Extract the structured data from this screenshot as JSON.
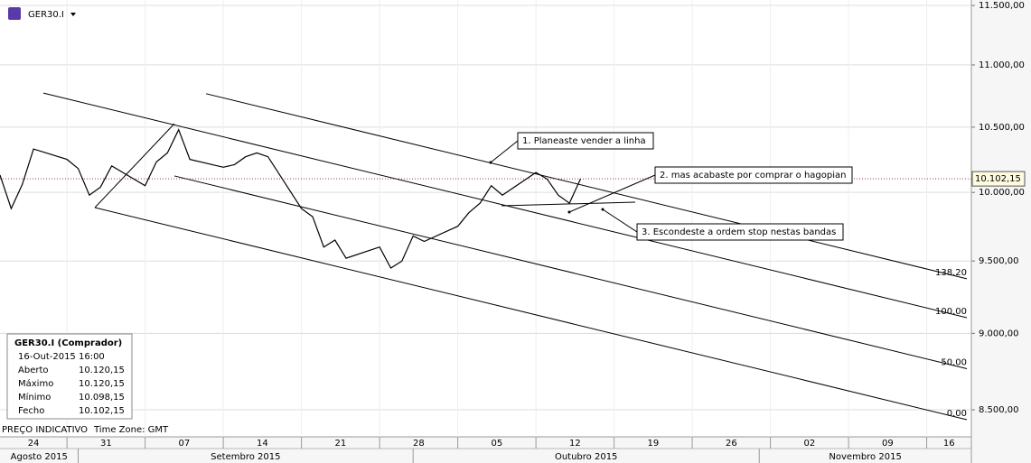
{
  "chart_data": {
    "type": "line",
    "symbol": "GER30.I",
    "log_scale": true,
    "x": [
      "2015-08-25",
      "2015-08-26",
      "2015-08-27",
      "2015-08-28",
      "2015-08-31",
      "2015-09-01",
      "2015-09-02",
      "2015-09-03",
      "2015-09-04",
      "2015-09-07",
      "2015-09-08",
      "2015-09-09",
      "2015-09-10",
      "2015-09-11",
      "2015-09-14",
      "2015-09-15",
      "2015-09-16",
      "2015-09-17",
      "2015-09-18",
      "2015-09-21",
      "2015-09-22",
      "2015-09-23",
      "2015-09-24",
      "2015-09-25",
      "2015-09-28",
      "2015-09-29",
      "2015-09-30",
      "2015-10-01",
      "2015-10-02",
      "2015-10-05",
      "2015-10-06",
      "2015-10-07",
      "2015-10-08",
      "2015-10-09",
      "2015-10-12",
      "2015-10-13",
      "2015-10-14",
      "2015-10-15",
      "2015-10-16"
    ],
    "series": [
      {
        "name": "GER30.I",
        "color": "#000000",
        "values": [
          10130,
          9880,
          10060,
          10330,
          10250,
          10180,
          9980,
          10040,
          10200,
          10050,
          10230,
          10300,
          10480,
          10250,
          10190,
          10210,
          10270,
          10300,
          10270,
          9880,
          9820,
          9600,
          9650,
          9520,
          9600,
          9450,
          9500,
          9680,
          9640,
          9750,
          9850,
          9920,
          10050,
          9980,
          10150,
          10100,
          9980,
          9920,
          10102.15
        ]
      }
    ],
    "xlim": [
      "2015-08-25",
      "2015-11-20"
    ],
    "xticks": [
      {
        "value": "2015-08-24",
        "label": "24"
      },
      {
        "value": "2015-08-31",
        "label": "31"
      },
      {
        "value": "2015-09-07",
        "label": "07"
      },
      {
        "value": "2015-09-14",
        "label": "14"
      },
      {
        "value": "2015-09-21",
        "label": "21"
      },
      {
        "value": "2015-09-28",
        "label": "28"
      },
      {
        "value": "2015-10-05",
        "label": "05"
      },
      {
        "value": "2015-10-12",
        "label": "12"
      },
      {
        "value": "2015-10-19",
        "label": "19"
      },
      {
        "value": "2015-10-26",
        "label": "26"
      },
      {
        "value": "2015-11-02",
        "label": "02"
      },
      {
        "value": "2015-11-09",
        "label": "09"
      },
      {
        "value": "2015-11-16",
        "label": "16"
      }
    ],
    "months": [
      {
        "value": "2015-08-01",
        "label": "Agosto 2015"
      },
      {
        "value": "2015-09-01",
        "label": "Setembro 2015"
      },
      {
        "value": "2015-10-01",
        "label": "Outubro 2015"
      },
      {
        "value": "2015-11-01",
        "label": "Novembro 2015"
      }
    ],
    "ylim": [
      8330,
      11547
    ],
    "yticks": [
      {
        "value": 8500,
        "label": "8.500,00"
      },
      {
        "value": 9000,
        "label": "9.000,00"
      },
      {
        "value": 9500,
        "label": "9.500,00"
      },
      {
        "value": 10000,
        "label": "10.000,00"
      },
      {
        "value": 10500,
        "label": "10.500,00"
      },
      {
        "value": 11000,
        "label": "11.000,00"
      },
      {
        "value": 11500,
        "label": "11.500,00"
      }
    ],
    "last_price": {
      "value": 10102.15,
      "label": "10.102,15"
    },
    "pitchfork_levels": [
      {
        "value": 0,
        "label": "0.00"
      },
      {
        "value": 50,
        "label": "50.00"
      },
      {
        "value": 100,
        "label": "100.00"
      },
      {
        "value": 138.2,
        "label": "138.20"
      }
    ],
    "annotations": [
      "1. Planeaste vender a linha",
      "2. mas acabaste por comprar o hagopian",
      "3. Escondeste a ordem stop nestas bandas"
    ],
    "info_box": {
      "title": "GER30.I (Comprador)",
      "datetime": "16-Out-2015 16:00",
      "rows": [
        [
          "Aberto",
          "10.120,15"
        ],
        [
          "Máximo",
          "10.120,15"
        ],
        [
          "Mínimo",
          "10.098,15"
        ],
        [
          "Fecho",
          "10.102,15"
        ]
      ]
    },
    "footer": [
      "PREÇO INDICATIVO",
      "Time Zone: GMT"
    ]
  }
}
